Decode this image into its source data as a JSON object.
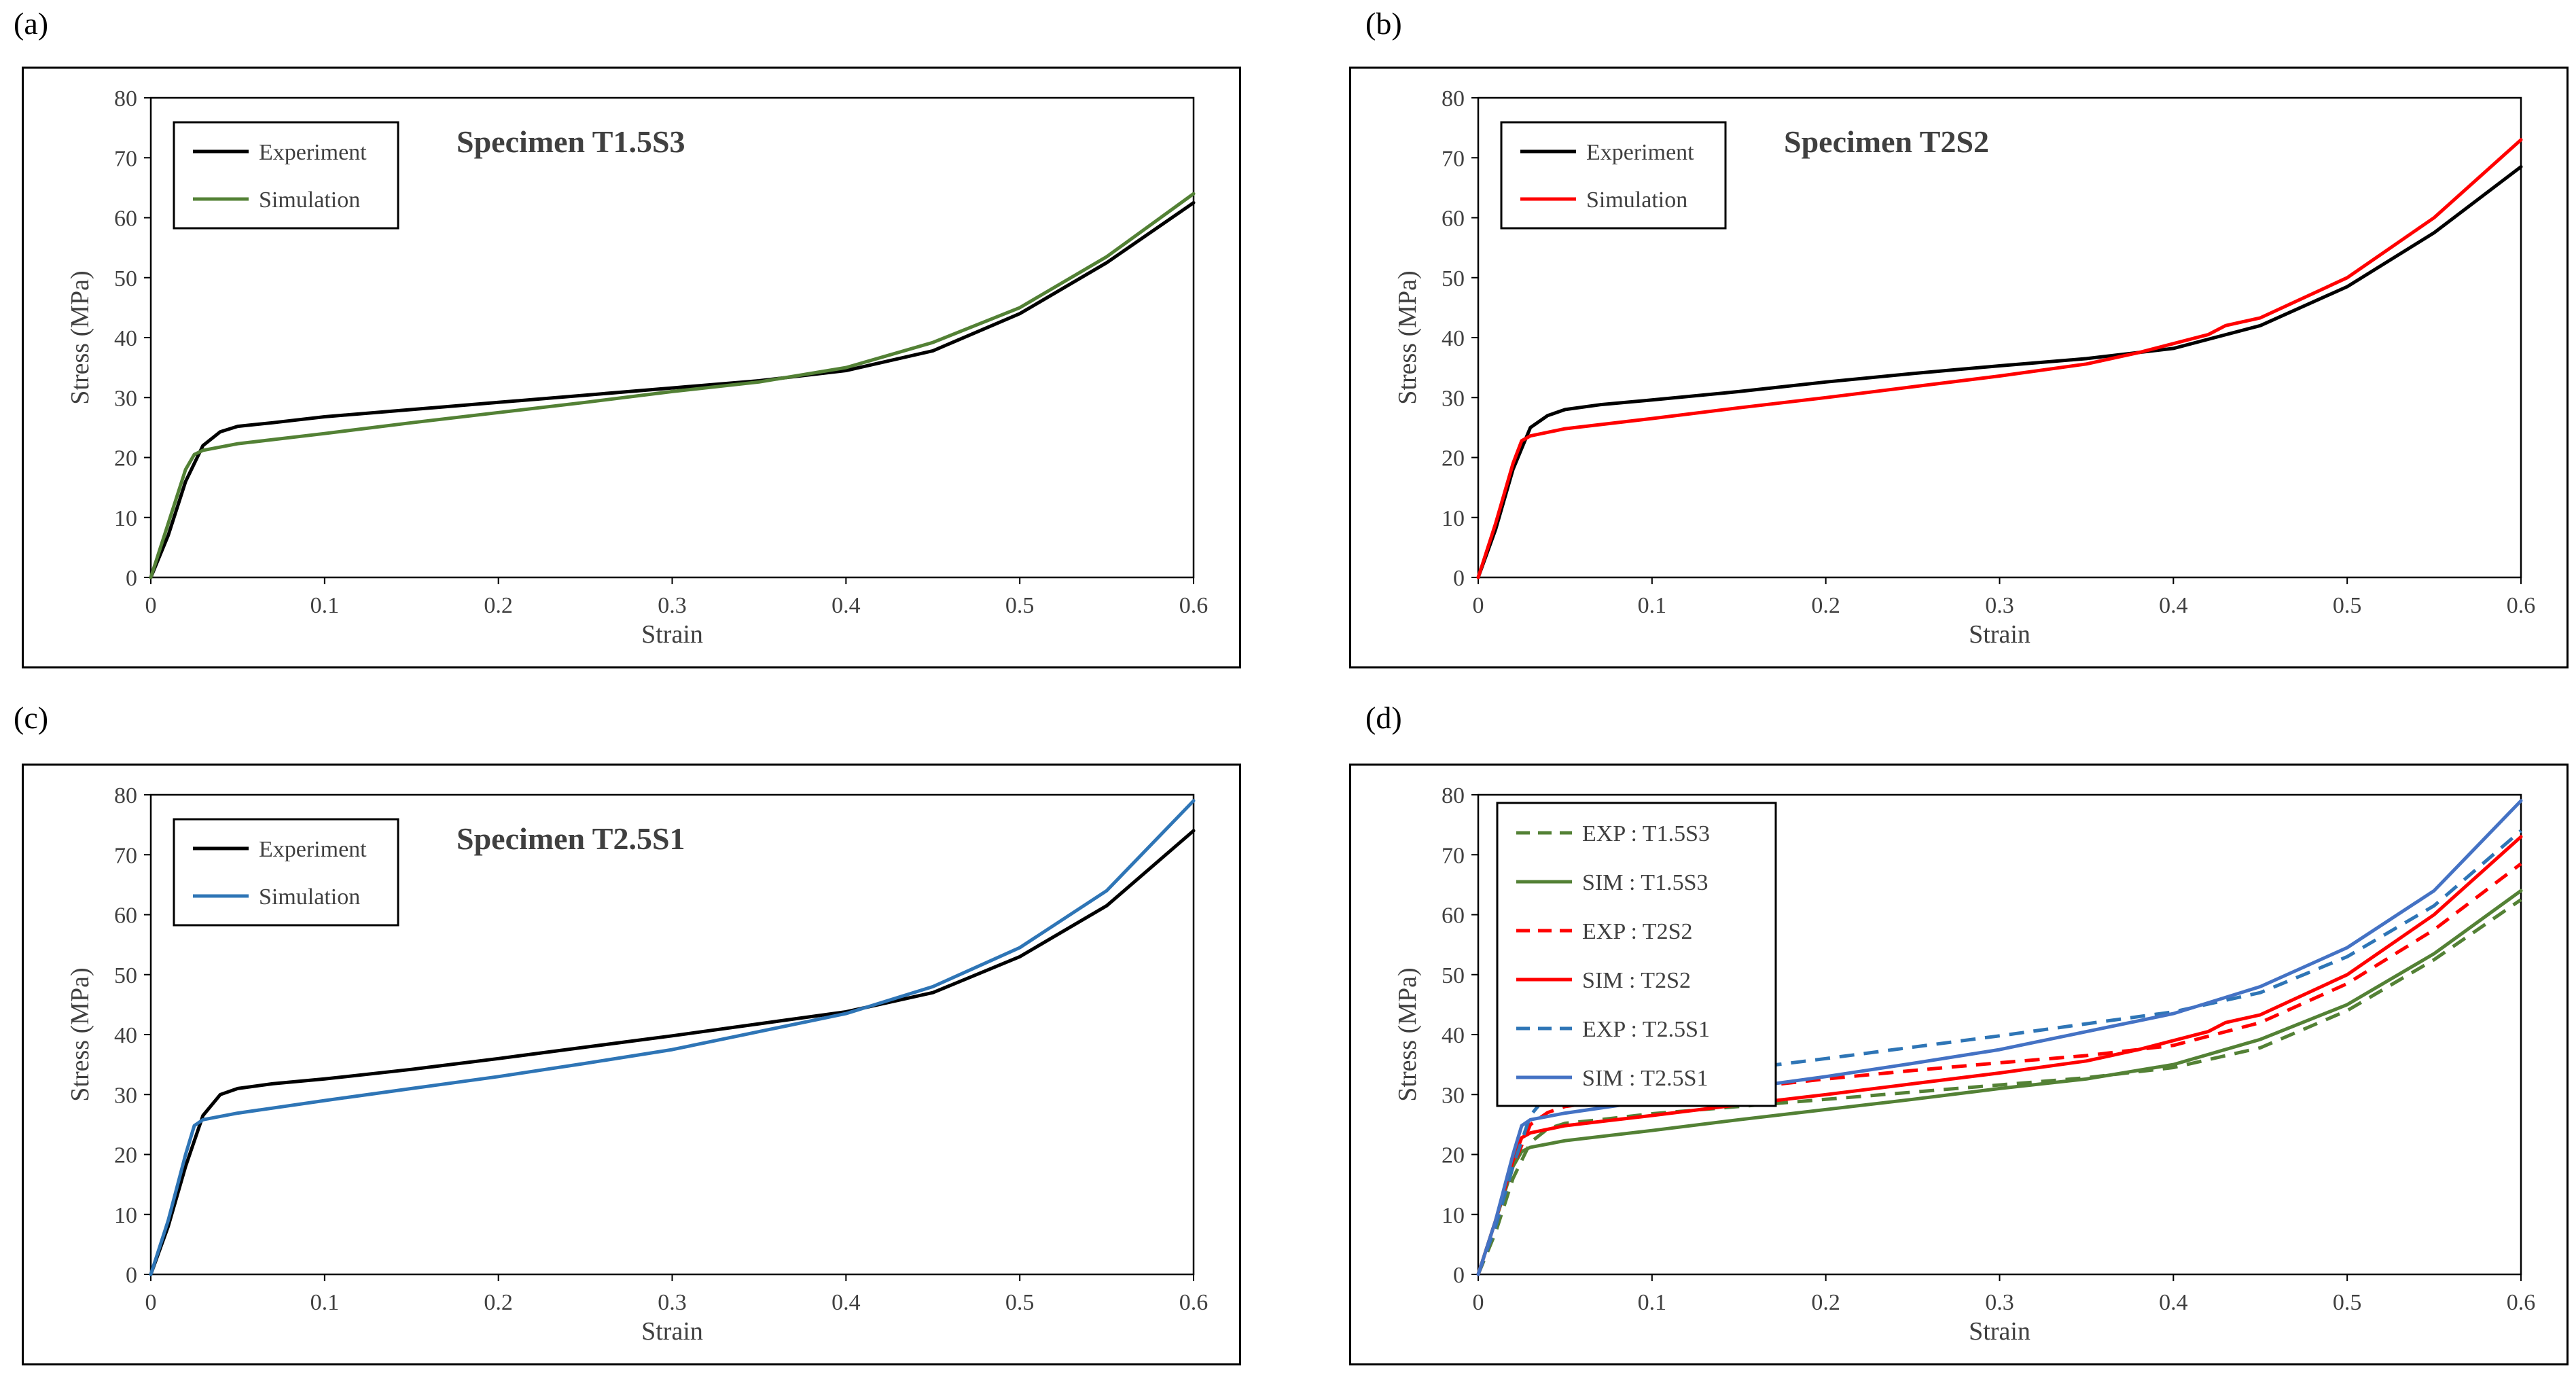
{
  "chart_data": [
    {
      "panel_label": "(a)",
      "type": "line",
      "title": "Specimen T1.5S3",
      "xlabel": "Strain",
      "ylabel": "Stress (MPa)",
      "xlim": [
        0,
        0.6
      ],
      "ylim": [
        0,
        80
      ],
      "xticks": [
        "0",
        "0.1",
        "0.2",
        "0.3",
        "0.4",
        "0.5",
        "0.6"
      ],
      "yticks": [
        "0",
        "10",
        "20",
        "30",
        "40",
        "50",
        "60",
        "70",
        "80"
      ],
      "grid": false,
      "legend": "top-left",
      "series": [
        {
          "name": "Experiment",
          "color": "#000000",
          "dash": false,
          "x": [
            0,
            0.01,
            0.02,
            0.03,
            0.04,
            0.05,
            0.07,
            0.1,
            0.15,
            0.2,
            0.25,
            0.3,
            0.35,
            0.4,
            0.45,
            0.5,
            0.55,
            0.6
          ],
          "y": [
            0,
            7,
            16,
            22,
            24.3,
            25.2,
            25.8,
            26.8,
            28,
            29.2,
            30.4,
            31.6,
            32.8,
            34.5,
            37.8,
            44,
            52.5,
            62.5
          ]
        },
        {
          "name": "Simulation",
          "color": "#538135",
          "dash": false,
          "x": [
            0,
            0.01,
            0.02,
            0.025,
            0.03,
            0.05,
            0.1,
            0.15,
            0.2,
            0.25,
            0.3,
            0.35,
            0.4,
            0.45,
            0.5,
            0.55,
            0.6
          ],
          "y": [
            0,
            9,
            18,
            20.5,
            21.2,
            22.3,
            24,
            25.8,
            27.5,
            29.2,
            31,
            32.6,
            35,
            39.2,
            45,
            53.5,
            64
          ]
        }
      ]
    },
    {
      "panel_label": "(b)",
      "type": "line",
      "title": "Specimen T2S2",
      "xlabel": "Strain",
      "ylabel": "Stress (MPa)",
      "xlim": [
        0,
        0.6
      ],
      "ylim": [
        0,
        80
      ],
      "xticks": [
        "0",
        "0.1",
        "0.2",
        "0.3",
        "0.4",
        "0.5",
        "0.6"
      ],
      "yticks": [
        "0",
        "10",
        "20",
        "30",
        "40",
        "50",
        "60",
        "70",
        "80"
      ],
      "grid": false,
      "legend": "top-left",
      "series": [
        {
          "name": "Experiment",
          "color": "#000000",
          "dash": false,
          "x": [
            0,
            0.01,
            0.02,
            0.03,
            0.04,
            0.05,
            0.07,
            0.1,
            0.15,
            0.2,
            0.25,
            0.3,
            0.35,
            0.4,
            0.45,
            0.5,
            0.55,
            0.6
          ],
          "y": [
            0,
            8,
            18,
            25,
            27,
            28,
            28.8,
            29.6,
            31,
            32.6,
            34,
            35.3,
            36.5,
            38.2,
            42,
            48.5,
            57.5,
            68.5
          ]
        },
        {
          "name": "Simulation",
          "color": "#ff0000",
          "dash": false,
          "x": [
            0,
            0.01,
            0.02,
            0.025,
            0.03,
            0.05,
            0.1,
            0.15,
            0.2,
            0.25,
            0.3,
            0.35,
            0.38,
            0.4,
            0.42,
            0.43,
            0.45,
            0.5,
            0.55,
            0.6
          ],
          "y": [
            0,
            9,
            19,
            22.8,
            23.6,
            24.8,
            26.5,
            28.3,
            30,
            31.8,
            33.6,
            35.6,
            37.5,
            39,
            40.5,
            42,
            43.3,
            50,
            60,
            73
          ]
        }
      ]
    },
    {
      "panel_label": "(c)",
      "type": "line",
      "title": "Specimen T2.5S1",
      "xlabel": "Strain",
      "ylabel": "Stress (MPa)",
      "xlim": [
        0,
        0.6
      ],
      "ylim": [
        0,
        80
      ],
      "xticks": [
        "0",
        "0.1",
        "0.2",
        "0.3",
        "0.4",
        "0.5",
        "0.6"
      ],
      "yticks": [
        "0",
        "10",
        "20",
        "30",
        "40",
        "50",
        "60",
        "70",
        "80"
      ],
      "grid": false,
      "legend": "top-left",
      "series": [
        {
          "name": "Experiment",
          "color": "#000000",
          "dash": false,
          "x": [
            0,
            0.01,
            0.02,
            0.03,
            0.04,
            0.05,
            0.07,
            0.1,
            0.15,
            0.2,
            0.25,
            0.3,
            0.35,
            0.4,
            0.45,
            0.5,
            0.55,
            0.6
          ],
          "y": [
            0,
            8,
            18,
            26.5,
            30,
            31,
            31.8,
            32.6,
            34.2,
            36,
            37.9,
            39.8,
            41.8,
            43.8,
            47,
            53,
            61.5,
            74
          ]
        },
        {
          "name": "Simulation",
          "color": "#2e75b6",
          "dash": false,
          "x": [
            0,
            0.01,
            0.02,
            0.025,
            0.03,
            0.05,
            0.1,
            0.15,
            0.2,
            0.25,
            0.3,
            0.35,
            0.4,
            0.45,
            0.5,
            0.55,
            0.6
          ],
          "y": [
            0,
            9,
            20,
            24.8,
            25.8,
            26.9,
            29,
            31,
            33,
            35.2,
            37.5,
            40.5,
            43.5,
            48,
            54.5,
            64,
            79
          ]
        }
      ]
    },
    {
      "panel_label": "(d)",
      "type": "line",
      "title": "",
      "xlabel": "Strain",
      "ylabel": "Stress (MPa)",
      "xlim": [
        0,
        0.6
      ],
      "ylim": [
        0,
        80
      ],
      "xticks": [
        "0",
        "0.1",
        "0.2",
        "0.3",
        "0.4",
        "0.5",
        "0.6"
      ],
      "yticks": [
        "0",
        "10",
        "20",
        "30",
        "40",
        "50",
        "60",
        "70",
        "80"
      ],
      "grid": false,
      "legend": "top-left",
      "series": [
        {
          "name": "EXP : T1.5S3",
          "color": "#538135",
          "dash": true,
          "x": [
            0,
            0.01,
            0.02,
            0.03,
            0.04,
            0.05,
            0.07,
            0.1,
            0.15,
            0.2,
            0.25,
            0.3,
            0.35,
            0.4,
            0.45,
            0.5,
            0.55,
            0.6
          ],
          "y": [
            0,
            7,
            16,
            22,
            24.3,
            25.2,
            25.8,
            26.8,
            28,
            29.2,
            30.4,
            31.6,
            32.8,
            34.5,
            37.8,
            44,
            52.5,
            62.5
          ]
        },
        {
          "name": "SIM : T1.5S3",
          "color": "#538135",
          "dash": false,
          "x": [
            0,
            0.01,
            0.02,
            0.025,
            0.03,
            0.05,
            0.1,
            0.15,
            0.2,
            0.25,
            0.3,
            0.35,
            0.4,
            0.45,
            0.5,
            0.55,
            0.6
          ],
          "y": [
            0,
            9,
            18,
            20.5,
            21.2,
            22.3,
            24,
            25.8,
            27.5,
            29.2,
            31,
            32.6,
            35,
            39.2,
            45,
            53.5,
            64
          ]
        },
        {
          "name": "EXP : T2S2",
          "color": "#ff0000",
          "dash": true,
          "x": [
            0,
            0.01,
            0.02,
            0.03,
            0.04,
            0.05,
            0.07,
            0.1,
            0.15,
            0.2,
            0.25,
            0.3,
            0.35,
            0.4,
            0.45,
            0.5,
            0.55,
            0.6
          ],
          "y": [
            0,
            8,
            18,
            25,
            27,
            28,
            28.8,
            29.6,
            31,
            32.6,
            34,
            35.3,
            36.5,
            38.2,
            42,
            48.5,
            57.5,
            68.5
          ]
        },
        {
          "name": "SIM : T2S2",
          "color": "#ff0000",
          "dash": false,
          "x": [
            0,
            0.01,
            0.02,
            0.025,
            0.03,
            0.05,
            0.1,
            0.15,
            0.2,
            0.25,
            0.3,
            0.35,
            0.38,
            0.4,
            0.42,
            0.43,
            0.45,
            0.5,
            0.55,
            0.6
          ],
          "y": [
            0,
            9,
            19,
            22.8,
            23.6,
            24.8,
            26.5,
            28.3,
            30,
            31.8,
            33.6,
            35.6,
            37.5,
            39,
            40.5,
            42,
            43.3,
            50,
            60,
            73
          ]
        },
        {
          "name": "EXP : T2.5S1",
          "color": "#2e75b6",
          "dash": true,
          "x": [
            0,
            0.01,
            0.02,
            0.03,
            0.04,
            0.05,
            0.07,
            0.1,
            0.15,
            0.2,
            0.25,
            0.3,
            0.35,
            0.4,
            0.45,
            0.5,
            0.55,
            0.6
          ],
          "y": [
            0,
            8,
            18,
            26.5,
            30,
            31,
            31.8,
            32.6,
            34.2,
            36,
            37.9,
            39.8,
            41.8,
            43.8,
            47,
            53,
            61.5,
            74
          ]
        },
        {
          "name": "SIM : T2.5S1",
          "color": "#4472c4",
          "dash": false,
          "x": [
            0,
            0.01,
            0.02,
            0.025,
            0.03,
            0.05,
            0.1,
            0.15,
            0.2,
            0.25,
            0.3,
            0.35,
            0.4,
            0.45,
            0.5,
            0.55,
            0.6
          ],
          "y": [
            0,
            9,
            20,
            24.8,
            25.8,
            26.9,
            29,
            31,
            33,
            35.2,
            37.5,
            40.5,
            43.5,
            48,
            54.5,
            64,
            79
          ]
        }
      ]
    }
  ]
}
